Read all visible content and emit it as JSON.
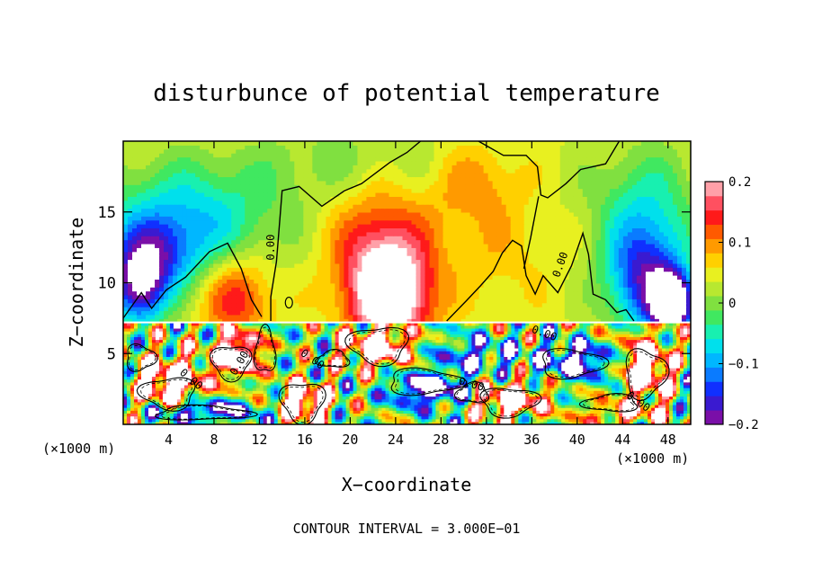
{
  "chart_data": {
    "type": "heatmap",
    "title": "disturbunce of potential temperature",
    "xlabel": "X−coordinate",
    "ylabel": "Z−coordinate",
    "x_unit": "(×1000 m)",
    "x_unit_right": "(×1000 m)",
    "footer": "CONTOUR INTERVAL = 3.000E−01",
    "xlim": [
      0,
      50
    ],
    "ylim": [
      0,
      20
    ],
    "x_ticks": [
      4,
      8,
      12,
      16,
      20,
      24,
      28,
      32,
      36,
      40,
      44,
      48
    ],
    "y_ticks": [
      5,
      10,
      15
    ],
    "colorbar": {
      "range": [
        -0.2,
        0.2
      ],
      "tick_values": [
        0.2,
        0.1,
        0,
        -0.1,
        -0.2
      ],
      "tick_labels": [
        "0.2",
        "0.1",
        "0",
        "−0.1",
        "−0.2"
      ],
      "colors": [
        "#7a0fa8",
        "#3a1ad0",
        "#1030ff",
        "#0a7bff",
        "#00b7ff",
        "#00e0ec",
        "#18f0b0",
        "#40e860",
        "#80e040",
        "#b8e830",
        "#e8f020",
        "#ffd000",
        "#ff9a00",
        "#ff5a00",
        "#ff1a1a",
        "#ff5060",
        "#ffa0a8"
      ]
    },
    "contour_labels": [
      "0.00",
      "0.00",
      "0.00",
      "0.00",
      "0.00",
      "0.00",
      "0.00",
      "0.00"
    ],
    "contour_interval": 0.3,
    "upper_blobs": [
      {
        "x": 5.5,
        "z": 14.5,
        "rx": 8,
        "rz": 4,
        "v": -0.12
      },
      {
        "x": 1.5,
        "z": 9.5,
        "rx": 2.4,
        "rz": 2.6,
        "v": -0.21
      },
      {
        "x": 2.5,
        "z": 12,
        "rx": 4,
        "rz": 2.5,
        "v": -0.12
      },
      {
        "x": 10,
        "z": 9,
        "rx": 3,
        "rz": 3,
        "v": 0.11
      },
      {
        "x": 20,
        "z": 18.5,
        "rx": 9,
        "rz": 3,
        "v": -0.04
      },
      {
        "x": 23.5,
        "z": 9,
        "rx": 3.6,
        "rz": 3.8,
        "v": 0.22
      },
      {
        "x": 22.5,
        "z": 13,
        "rx": 4.5,
        "rz": 4.5,
        "v": 0.09
      },
      {
        "x": 33,
        "z": 12,
        "rx": 5,
        "rz": 3.5,
        "v": 0.03
      },
      {
        "x": 46,
        "z": 10.5,
        "rx": 3.5,
        "rz": 4,
        "v": -0.2
      },
      {
        "x": 48.5,
        "z": 8.5,
        "rx": 2,
        "rz": 2.2,
        "v": -0.27
      },
      {
        "x": 46,
        "z": 16,
        "rx": 5,
        "rz": 4,
        "v": -0.07
      },
      {
        "x": 31,
        "z": 17,
        "rx": 4,
        "rz": 3,
        "v": 0.06
      }
    ],
    "lower_blobs": [
      {
        "x": 4,
        "z": 3,
        "rx": 3,
        "rz": 1.8,
        "v": 0.3
      },
      {
        "x": 10,
        "z": 5,
        "rx": 2.2,
        "rz": 1.6,
        "v": 0.3
      },
      {
        "x": 22.5,
        "z": 5.5,
        "rx": 3,
        "rz": 1.4,
        "v": 0.3
      },
      {
        "x": 16,
        "z": 1.6,
        "rx": 2.2,
        "rz": 1.4,
        "v": 0.3
      },
      {
        "x": 27,
        "z": 2.5,
        "rx": 3.5,
        "rz": 1.2,
        "v": -0.25
      },
      {
        "x": 34,
        "z": 1.8,
        "rx": 3,
        "rz": 1.2,
        "v": 0.3
      },
      {
        "x": 40,
        "z": 4.5,
        "rx": 3.5,
        "rz": 1.3,
        "v": -0.22
      },
      {
        "x": 46,
        "z": 4,
        "rx": 2.2,
        "rz": 2.2,
        "v": 0.3
      },
      {
        "x": 31,
        "z": 5,
        "rx": 4,
        "rz": 1.2,
        "v": -0.15
      },
      {
        "x": 7,
        "z": 1,
        "rx": 5,
        "rz": 0.8,
        "v": -0.22
      },
      {
        "x": 44,
        "z": 0.8,
        "rx": 4,
        "rz": 0.8,
        "v": 0.15
      }
    ]
  }
}
